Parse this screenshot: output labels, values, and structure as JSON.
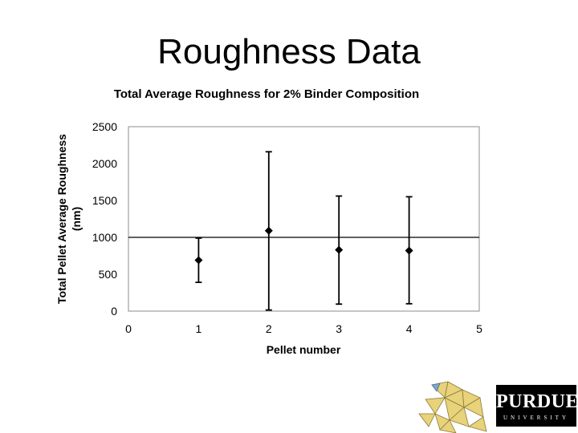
{
  "slide": {
    "title": "Roughness Data"
  },
  "chart_data": {
    "type": "scatter",
    "title": "Total Average Roughness for 2%  Binder Composition",
    "xlabel": "Pellet number",
    "ylabel_line1": "Total Pellet Average Roughness",
    "ylabel_line2": "(nm)",
    "xlim": [
      0,
      5
    ],
    "ylim": [
      0,
      2500
    ],
    "x_ticks": [
      0,
      1,
      2,
      3,
      4,
      5
    ],
    "y_ticks": [
      0,
      500,
      1000,
      1500,
      2000,
      2500
    ],
    "reference_line_y": 1000,
    "grid": false,
    "legend": false,
    "series": [
      {
        "marker": "diamond",
        "color": "#000000",
        "x": [
          1,
          2,
          3,
          4
        ],
        "y": [
          690,
          1090,
          830,
          820
        ],
        "error_low": [
          390,
          15,
          95,
          100
        ],
        "error_high": [
          990,
          2160,
          1560,
          1550
        ]
      }
    ]
  },
  "logo": {
    "wordmark": "PURDUE",
    "subtitle": "UNIVERSITY",
    "background": "#000000",
    "text_color": "#ffffff",
    "emblem_color": "#e8d27a"
  }
}
